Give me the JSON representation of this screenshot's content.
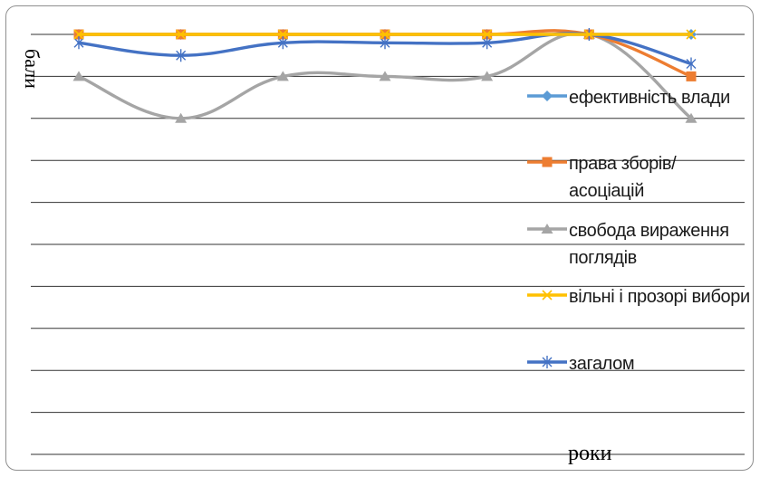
{
  "chart_data": {
    "type": "line",
    "title": "",
    "xlabel": "роки",
    "ylabel": "бали",
    "categories": [
      "",
      "",
      "",
      "",
      "",
      "",
      ""
    ],
    "ylim": [
      0,
      10
    ],
    "grid": true,
    "legend_position": "right",
    "series": [
      {
        "name": "ефективність влади",
        "color": "#5b9bd5",
        "marker": "diamond",
        "values": [
          10,
          10,
          10,
          10,
          10,
          10,
          10
        ]
      },
      {
        "name": "права зборів/асоціацій",
        "color": "#ed7d31",
        "marker": "square",
        "values": [
          10,
          10,
          10,
          10,
          10,
          10,
          9
        ]
      },
      {
        "name": "свобода вираження поглядів",
        "color": "#a5a5a5",
        "marker": "triangle",
        "values": [
          9,
          8,
          9,
          9,
          9,
          10,
          8
        ]
      },
      {
        "name": "вільні і прозорі вибори",
        "color": "#ffc000",
        "marker": "x",
        "values": [
          10,
          10,
          10,
          10,
          10,
          10,
          10
        ]
      },
      {
        "name": "загалом",
        "color": "#4472c4",
        "marker": "star",
        "values": [
          9.8,
          9.5,
          9.8,
          9.8,
          9.8,
          10,
          9.3
        ]
      }
    ]
  }
}
